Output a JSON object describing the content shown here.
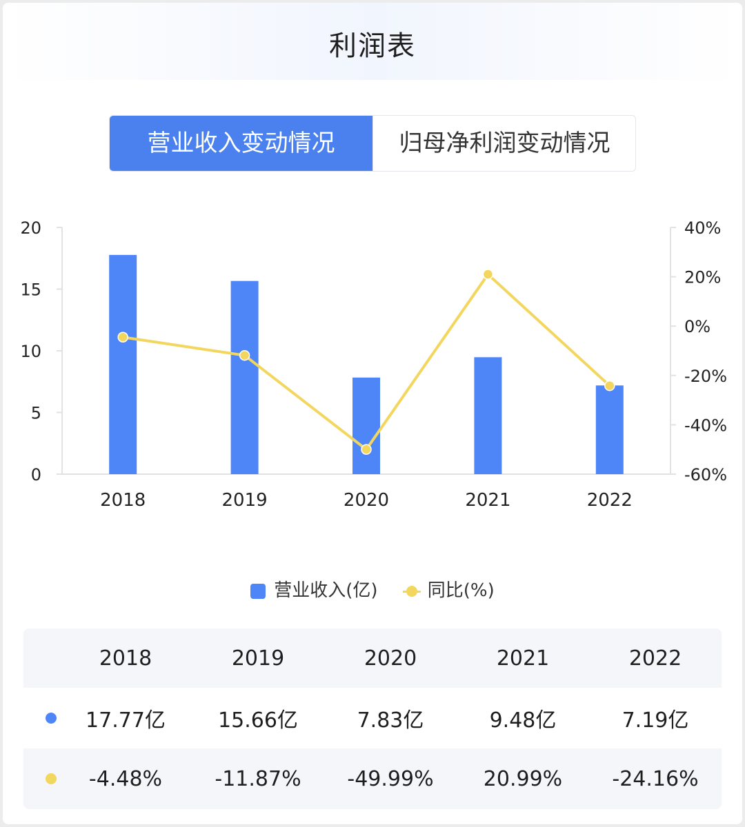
{
  "title": "利润表",
  "tabs": [
    {
      "label": "营业收入变动情况",
      "active": true
    },
    {
      "label": "归母净利润变动情况",
      "active": false
    }
  ],
  "colors": {
    "bar": "#4f86f7",
    "line": "#f2d65e",
    "accent": "#4a81ee"
  },
  "chart_data": {
    "type": "bar",
    "categories": [
      "2018",
      "2019",
      "2020",
      "2021",
      "2022"
    ],
    "series": [
      {
        "name": "营业收入(亿)",
        "type": "bar",
        "axis": "left",
        "values": [
          17.77,
          15.66,
          7.83,
          9.48,
          7.19
        ]
      },
      {
        "name": "同比(%)",
        "type": "line",
        "axis": "right",
        "values": [
          -4.48,
          -11.87,
          -49.99,
          20.99,
          -24.16
        ]
      }
    ],
    "y_left": {
      "range": [
        0,
        20
      ],
      "ticks": [
        "0",
        "5",
        "10",
        "15",
        "20"
      ]
    },
    "y_right": {
      "range": [
        -60,
        40
      ],
      "ticks": [
        "-60%",
        "-40%",
        "-20%",
        "0%",
        "20%",
        "40%"
      ]
    },
    "legend_position": "bottom"
  },
  "legend": [
    {
      "label": "营业收入(亿)",
      "icon": "bar-swatch"
    },
    {
      "label": "同比(%)",
      "icon": "line-swatch"
    }
  ],
  "table": {
    "headers": [
      "2018",
      "2019",
      "2020",
      "2021",
      "2022"
    ],
    "rows": [
      {
        "marker": "blue-dot",
        "cells": [
          "17.77亿",
          "15.66亿",
          "7.83亿",
          "9.48亿",
          "7.19亿"
        ]
      },
      {
        "marker": "yellow-dot",
        "cells": [
          "-4.48%",
          "-11.87%",
          "-49.99%",
          "20.99%",
          "-24.16%"
        ]
      }
    ]
  }
}
